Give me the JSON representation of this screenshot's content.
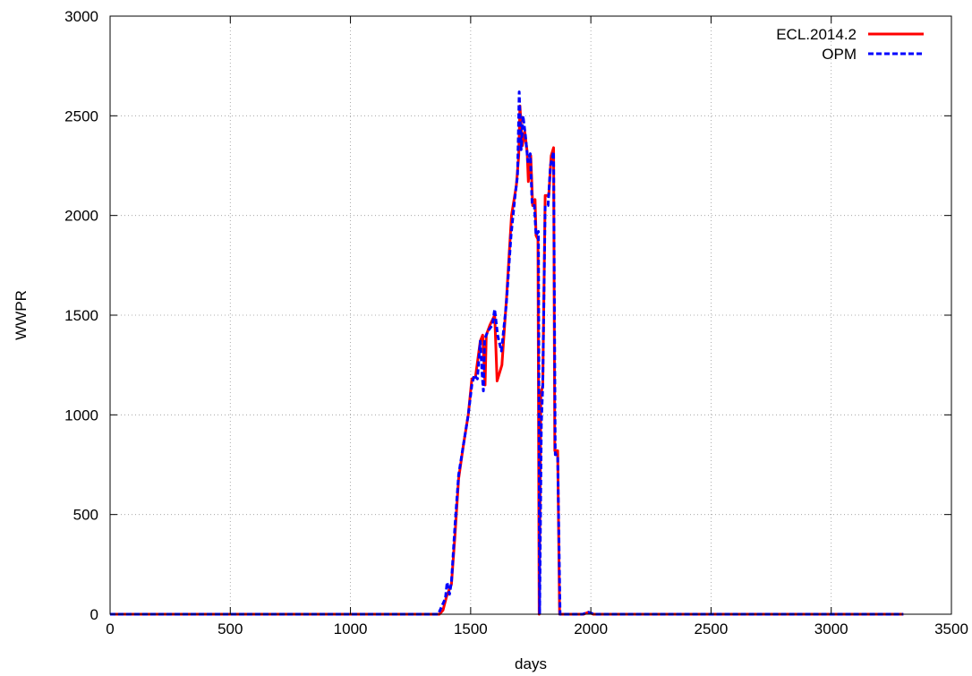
{
  "chart_data": {
    "type": "line",
    "title": "",
    "xlabel": "days",
    "ylabel": "WWPR",
    "xlim": [
      0,
      3500
    ],
    "ylim": [
      0,
      3000
    ],
    "x_ticks": [
      0,
      500,
      1000,
      1500,
      2000,
      2500,
      3000,
      3500
    ],
    "y_ticks": [
      0,
      500,
      1000,
      1500,
      2000,
      2500,
      3000
    ],
    "grid": true,
    "legend_position": "top-right",
    "series": [
      {
        "name": "ECL.2014.2",
        "color": "#ff0000",
        "style": "solid",
        "points": [
          [
            0,
            0
          ],
          [
            1370,
            0
          ],
          [
            1385,
            20
          ],
          [
            1400,
            90
          ],
          [
            1420,
            150
          ],
          [
            1435,
            400
          ],
          [
            1450,
            680
          ],
          [
            1470,
            850
          ],
          [
            1490,
            1000
          ],
          [
            1505,
            1180
          ],
          [
            1520,
            1190
          ],
          [
            1540,
            1370
          ],
          [
            1550,
            1400
          ],
          [
            1560,
            1150
          ],
          [
            1565,
            1400
          ],
          [
            1580,
            1450
          ],
          [
            1600,
            1500
          ],
          [
            1610,
            1170
          ],
          [
            1630,
            1250
          ],
          [
            1650,
            1600
          ],
          [
            1670,
            2000
          ],
          [
            1690,
            2150
          ],
          [
            1700,
            2300
          ],
          [
            1705,
            2550
          ],
          [
            1715,
            2350
          ],
          [
            1725,
            2420
          ],
          [
            1735,
            2320
          ],
          [
            1740,
            2170
          ],
          [
            1750,
            2300
          ],
          [
            1758,
            2050
          ],
          [
            1768,
            2080
          ],
          [
            1772,
            1900
          ],
          [
            1780,
            1880
          ],
          [
            1785,
            0
          ],
          [
            1792,
            1100
          ],
          [
            1800,
            1150
          ],
          [
            1810,
            2100
          ],
          [
            1825,
            2100
          ],
          [
            1835,
            2300
          ],
          [
            1845,
            2340
          ],
          [
            1850,
            820
          ],
          [
            1862,
            820
          ],
          [
            1870,
            0
          ],
          [
            1970,
            0
          ],
          [
            1990,
            10
          ],
          [
            2010,
            0
          ],
          [
            3300,
            0
          ]
        ]
      },
      {
        "name": "OPM",
        "color": "#0000ff",
        "style": "dashed",
        "points": [
          [
            0,
            0
          ],
          [
            1365,
            0
          ],
          [
            1380,
            40
          ],
          [
            1395,
            80
          ],
          [
            1402,
            160
          ],
          [
            1412,
            100
          ],
          [
            1420,
            160
          ],
          [
            1435,
            450
          ],
          [
            1450,
            700
          ],
          [
            1470,
            850
          ],
          [
            1490,
            1000
          ],
          [
            1505,
            1150
          ],
          [
            1515,
            1200
          ],
          [
            1528,
            1180
          ],
          [
            1540,
            1370
          ],
          [
            1548,
            1200
          ],
          [
            1553,
            1120
          ],
          [
            1558,
            1380
          ],
          [
            1572,
            1420
          ],
          [
            1590,
            1450
          ],
          [
            1600,
            1530
          ],
          [
            1612,
            1400
          ],
          [
            1628,
            1320
          ],
          [
            1648,
            1550
          ],
          [
            1668,
            1900
          ],
          [
            1685,
            2100
          ],
          [
            1695,
            2200
          ],
          [
            1702,
            2620
          ],
          [
            1710,
            2330
          ],
          [
            1718,
            2500
          ],
          [
            1728,
            2400
          ],
          [
            1738,
            2270
          ],
          [
            1748,
            2310
          ],
          [
            1756,
            2050
          ],
          [
            1765,
            2050
          ],
          [
            1772,
            1900
          ],
          [
            1782,
            1920
          ],
          [
            1787,
            0
          ],
          [
            1794,
            950
          ],
          [
            1800,
            1150
          ],
          [
            1810,
            2050
          ],
          [
            1822,
            2050
          ],
          [
            1832,
            2250
          ],
          [
            1845,
            2320
          ],
          [
            1852,
            800
          ],
          [
            1862,
            800
          ],
          [
            1872,
            0
          ],
          [
            1965,
            0
          ],
          [
            1990,
            10
          ],
          [
            2015,
            0
          ],
          [
            3300,
            0
          ]
        ]
      }
    ]
  }
}
